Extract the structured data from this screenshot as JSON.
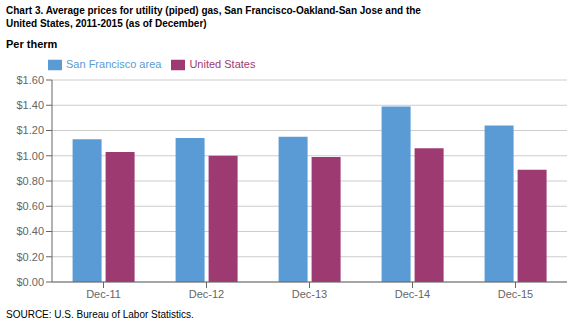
{
  "chart_data": {
    "type": "bar",
    "title": "Chart 3. Average prices for utility (piped) gas, San Francisco-Oakland-San Jose and the\nUnited States, 2011-2015  (as of December)",
    "ylabel": "Per therm",
    "annotations": [
      "SOURCE: U.S. Bureau of Labor Statistics."
    ],
    "categories": [
      "Dec-11",
      "Dec-12",
      "Dec-13",
      "Dec-14",
      "Dec-15"
    ],
    "series": [
      {
        "name": "San Francisco area",
        "color": "#5B9BD5",
        "values": [
          1.13,
          1.14,
          1.15,
          1.39,
          1.24
        ]
      },
      {
        "name": "United States",
        "color": "#9E3A72",
        "values": [
          1.03,
          1.0,
          0.99,
          1.06,
          0.89
        ]
      }
    ],
    "ylim": [
      0.0,
      1.6
    ],
    "yticks": [
      {
        "value": 0.0,
        "label": "$0.00"
      },
      {
        "value": 0.2,
        "label": "$0.20"
      },
      {
        "value": 0.4,
        "label": "$0.40"
      },
      {
        "value": 0.6,
        "label": "$0.60"
      },
      {
        "value": 0.8,
        "label": "$0.80"
      },
      {
        "value": 1.0,
        "label": "$1.00"
      },
      {
        "value": 1.2,
        "label": "$1.20"
      },
      {
        "value": 1.4,
        "label": "$1.40"
      },
      {
        "value": 1.6,
        "label": "$1.60"
      }
    ],
    "grid": true,
    "legend": "upper left"
  }
}
